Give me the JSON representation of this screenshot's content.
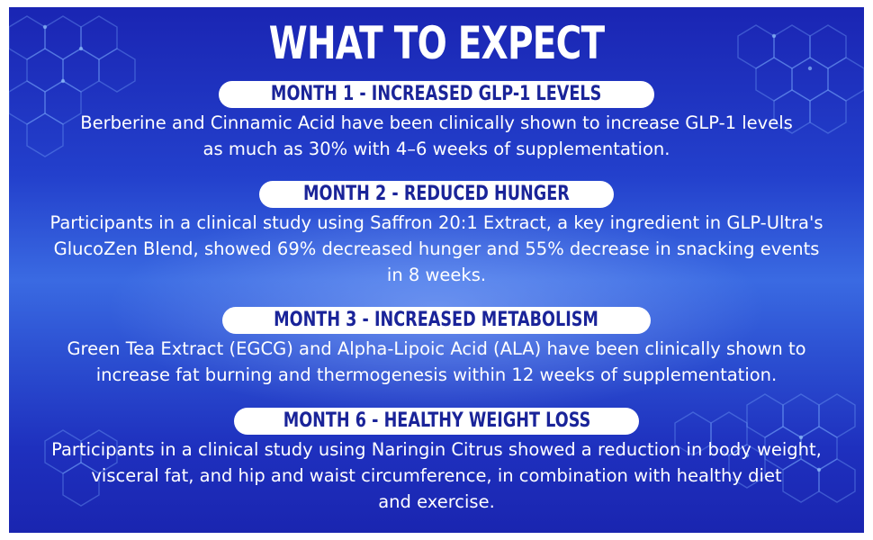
{
  "title": "WHAT TO EXPECT",
  "sections": [
    {
      "heading": "MONTH 1 - INCREASED GLP-1 LEVELS",
      "body": "Berberine and Cinnamic Acid have been clinically shown to increase GLP-1 levels\nas much as 30% with 4–6 weeks of supplementation."
    },
    {
      "heading": "MONTH 2 - REDUCED HUNGER",
      "body": "Participants in a clinical study using Saffron 20:1 Extract, a key ingredient in GLP-Ultra's\nGlucoZen Blend, showed 69% decreased hunger and 55% decrease in snacking events\nin 8 weeks."
    },
    {
      "heading": "MONTH 3 - INCREASED METABOLISM",
      "body": "Green Tea Extract (EGCG) and Alpha-Lipoic Acid (ALA) have been clinically shown to\nincrease fat burning and thermogenesis within 12 weeks of supplementation."
    },
    {
      "heading": "MONTH 6 - HEALTHY WEIGHT LOSS",
      "body": "Participants in a clinical study using Naringin Citrus showed a reduction in body weight,\nvisceral fat, and hip and waist circumference, in combination with healthy diet\nand exercise."
    }
  ],
  "colors": {
    "background_top": "#1a25b3",
    "background_mid": "#3a6ae2",
    "pill_background": "#ffffff",
    "pill_text": "#1a2499",
    "body_text": "#ffffff"
  }
}
